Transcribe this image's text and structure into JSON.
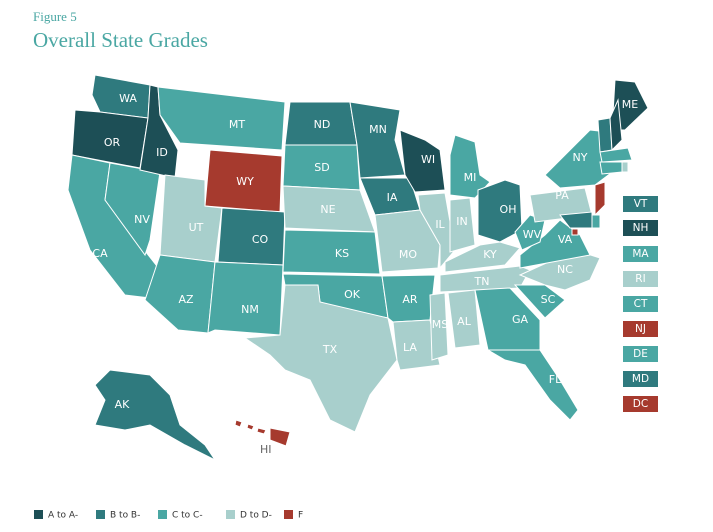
{
  "header": {
    "figure": "Figure 5",
    "title": "Overall State Grades"
  },
  "states": [
    {
      "abbr": "WA",
      "color": "#2f7a7e"
    },
    {
      "abbr": "OR",
      "color": "#1d4f56"
    },
    {
      "abbr": "CA",
      "color": "#4aa7a3"
    },
    {
      "abbr": "NV",
      "color": "#4aa7a3"
    },
    {
      "abbr": "ID",
      "color": "#1d4f56"
    },
    {
      "abbr": "MT",
      "color": "#4aa7a3"
    },
    {
      "abbr": "WY",
      "color": "#a63a2e"
    },
    {
      "abbr": "UT",
      "color": "#a8cfcc"
    },
    {
      "abbr": "AZ",
      "color": "#4aa7a3"
    },
    {
      "abbr": "CO",
      "color": "#2f7a7e"
    },
    {
      "abbr": "NM",
      "color": "#4aa7a3"
    },
    {
      "abbr": "ND",
      "color": "#2f7a7e"
    },
    {
      "abbr": "SD",
      "color": "#4aa7a3"
    },
    {
      "abbr": "NE",
      "color": "#a8cfcc"
    },
    {
      "abbr": "KS",
      "color": "#4aa7a3"
    },
    {
      "abbr": "OK",
      "color": "#4aa7a3"
    },
    {
      "abbr": "TX",
      "color": "#a8cfcc"
    },
    {
      "abbr": "MN",
      "color": "#2f7a7e"
    },
    {
      "abbr": "IA",
      "color": "#2f7a7e"
    },
    {
      "abbr": "MO",
      "color": "#a8cfcc"
    },
    {
      "abbr": "AR",
      "color": "#4aa7a3"
    },
    {
      "abbr": "LA",
      "color": "#a8cfcc"
    },
    {
      "abbr": "WI",
      "color": "#1d4f56"
    },
    {
      "abbr": "IL",
      "color": "#a8cfcc"
    },
    {
      "abbr": "MI",
      "color": "#4aa7a3"
    },
    {
      "abbr": "IN",
      "color": "#a8cfcc"
    },
    {
      "abbr": "OH",
      "color": "#2f7a7e"
    },
    {
      "abbr": "KY",
      "color": "#a8cfcc"
    },
    {
      "abbr": "TN",
      "color": "#a8cfcc"
    },
    {
      "abbr": "MS",
      "color": "#a8cfcc"
    },
    {
      "abbr": "AL",
      "color": "#a8cfcc"
    },
    {
      "abbr": "GA",
      "color": "#4aa7a3"
    },
    {
      "abbr": "FL",
      "color": "#4aa7a3"
    },
    {
      "abbr": "SC",
      "color": "#4aa7a3"
    },
    {
      "abbr": "NC",
      "color": "#a8cfcc"
    },
    {
      "abbr": "VA",
      "color": "#4aa7a3"
    },
    {
      "abbr": "WV",
      "color": "#4aa7a3"
    },
    {
      "abbr": "PA",
      "color": "#a8cfcc"
    },
    {
      "abbr": "NY",
      "color": "#4aa7a3"
    },
    {
      "abbr": "ME",
      "color": "#1d4f56"
    },
    {
      "abbr": "VT",
      "color": "#2f7a7e"
    },
    {
      "abbr": "NH",
      "color": "#1d4f56"
    },
    {
      "abbr": "MA",
      "color": "#4aa7a3"
    },
    {
      "abbr": "RI",
      "color": "#a8cfcc"
    },
    {
      "abbr": "CT",
      "color": "#4aa7a3"
    },
    {
      "abbr": "NJ",
      "color": "#a63a2e"
    },
    {
      "abbr": "DE",
      "color": "#4aa7a3"
    },
    {
      "abbr": "MD",
      "color": "#2f7a7e"
    },
    {
      "abbr": "DC",
      "color": "#a63a2e"
    },
    {
      "abbr": "AK",
      "color": "#2f7a7e"
    },
    {
      "abbr": "HI",
      "color": "#a63a2e"
    }
  ],
  "legend": [
    {
      "label": "A to A-",
      "color": "#1d4f56"
    },
    {
      "label": "B to B-",
      "color": "#2f7a7e"
    },
    {
      "label": "C to C-",
      "color": "#4aa7a3"
    },
    {
      "label": "D to D-",
      "color": "#a8cfcc"
    },
    {
      "label": "F",
      "color": "#a63a2e"
    }
  ]
}
